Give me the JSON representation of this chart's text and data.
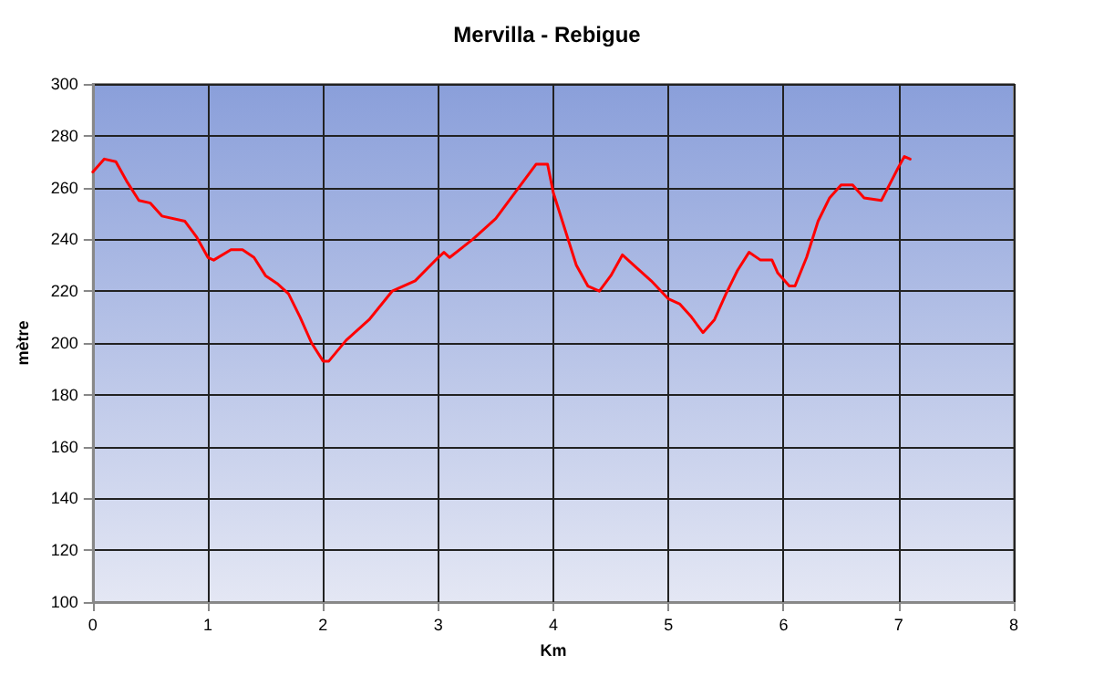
{
  "chart_data": {
    "type": "line",
    "title": "Mervilla - Rebigue",
    "xlabel": "Km",
    "ylabel": "mètre",
    "x": [
      0,
      0.1,
      0.2,
      0.3,
      0.4,
      0.5,
      0.6,
      0.8,
      0.9,
      1.0,
      1.05,
      1.2,
      1.3,
      1.4,
      1.5,
      1.6,
      1.7,
      1.8,
      1.9,
      2.0,
      2.05,
      2.2,
      2.4,
      2.6,
      2.8,
      3.0,
      3.05,
      3.1,
      3.3,
      3.5,
      3.7,
      3.85,
      3.95,
      4.0,
      4.1,
      4.2,
      4.3,
      4.4,
      4.5,
      4.6,
      4.7,
      4.85,
      5.0,
      5.1,
      5.2,
      5.3,
      5.4,
      5.5,
      5.6,
      5.7,
      5.8,
      5.9,
      5.95,
      6.05,
      6.1,
      6.2,
      6.3,
      6.4,
      6.5,
      6.6,
      6.7,
      6.85,
      7.0,
      7.05,
      7.1
    ],
    "series": [
      {
        "color": "#ff0000",
        "values": [
          266,
          271,
          270,
          262,
          255,
          254,
          249,
          247,
          241,
          233,
          232,
          236,
          236,
          233,
          226,
          223,
          219,
          210,
          200,
          193,
          193,
          201,
          209,
          220,
          224,
          233,
          235,
          233,
          240,
          248,
          260,
          269,
          269,
          258,
          244,
          230,
          222,
          220,
          226,
          234,
          230,
          224,
          217,
          215,
          210,
          204,
          209,
          219,
          228,
          235,
          232,
          232,
          227,
          222,
          222,
          233,
          247,
          256,
          261,
          261,
          256,
          255,
          268,
          272,
          271
        ]
      }
    ],
    "xlim": [
      0,
      8
    ],
    "xticks": [
      0,
      1,
      2,
      3,
      4,
      5,
      6,
      7,
      8
    ],
    "ylim": [
      100,
      300
    ],
    "yticks": [
      100,
      120,
      140,
      160,
      180,
      200,
      220,
      240,
      260,
      280,
      300
    ],
    "grid": true,
    "marker": "none",
    "line_style": "solid"
  }
}
